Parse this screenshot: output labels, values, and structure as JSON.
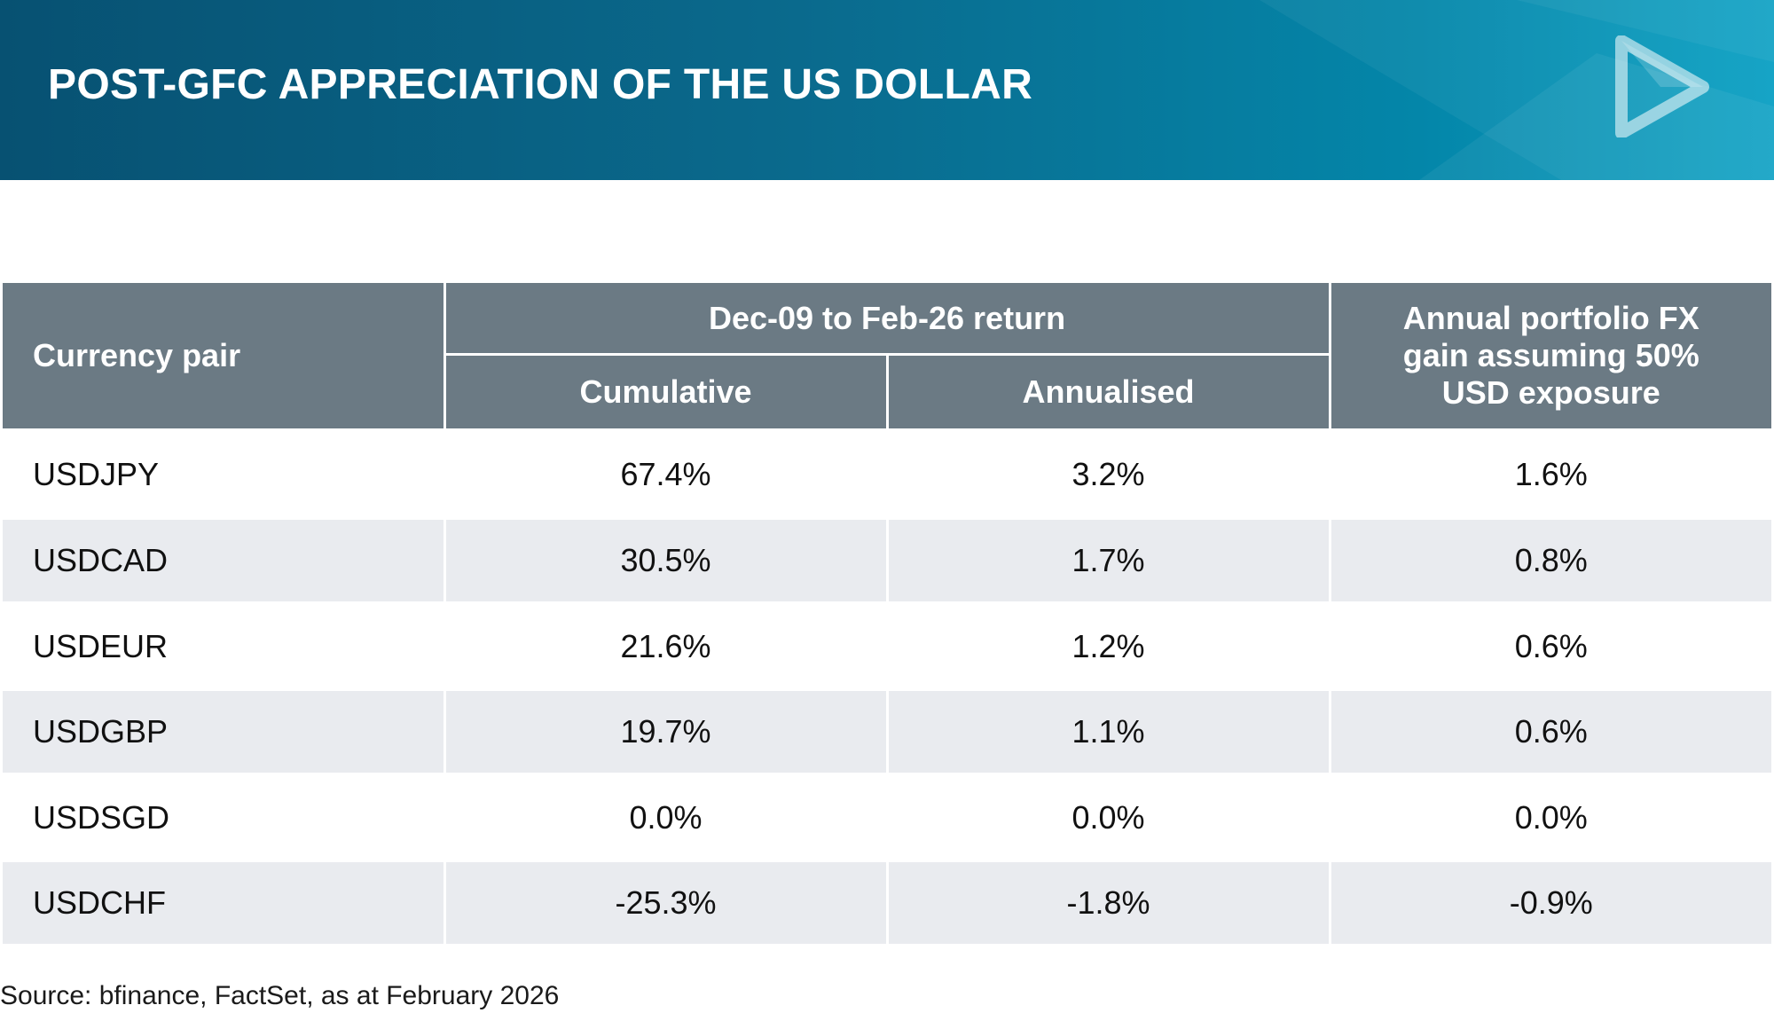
{
  "header": {
    "title": "POST-GFC APPRECIATION OF THE US DOLLAR"
  },
  "colors": {
    "header_gradient_start": "#075172",
    "header_gradient_end": "#0aa0c3",
    "table_header_bg": "#6b7a84",
    "row_alt_bg": "#e9ebef"
  },
  "icons": {
    "logo": "play-triangle-logo"
  },
  "table": {
    "col_currency": "Currency pair",
    "group_return": "Dec-09 to Feb-26 return",
    "col_cumulative": "Cumulative",
    "col_annualised": "Annualised",
    "col_fx_gain_line1": "Annual portfolio FX",
    "col_fx_gain_line2": "gain assuming 50%",
    "col_fx_gain_line3": "USD exposure",
    "rows": [
      {
        "pair": "USDJPY",
        "cumulative": "67.4%",
        "annualised": "3.2%",
        "fx_gain": "1.6%"
      },
      {
        "pair": "USDCAD",
        "cumulative": "30.5%",
        "annualised": "1.7%",
        "fx_gain": "0.8%"
      },
      {
        "pair": "USDEUR",
        "cumulative": "21.6%",
        "annualised": "1.2%",
        "fx_gain": "0.6%"
      },
      {
        "pair": "USDGBP",
        "cumulative": "19.7%",
        "annualised": "1.1%",
        "fx_gain": "0.6%"
      },
      {
        "pair": "USDSGD",
        "cumulative": "0.0%",
        "annualised": "0.0%",
        "fx_gain": "0.0%"
      },
      {
        "pair": "USDCHF",
        "cumulative": "-25.3%",
        "annualised": "-1.8%",
        "fx_gain": "-0.9%"
      }
    ]
  },
  "source": "Source: bfinance, FactSet, as at February 2026"
}
